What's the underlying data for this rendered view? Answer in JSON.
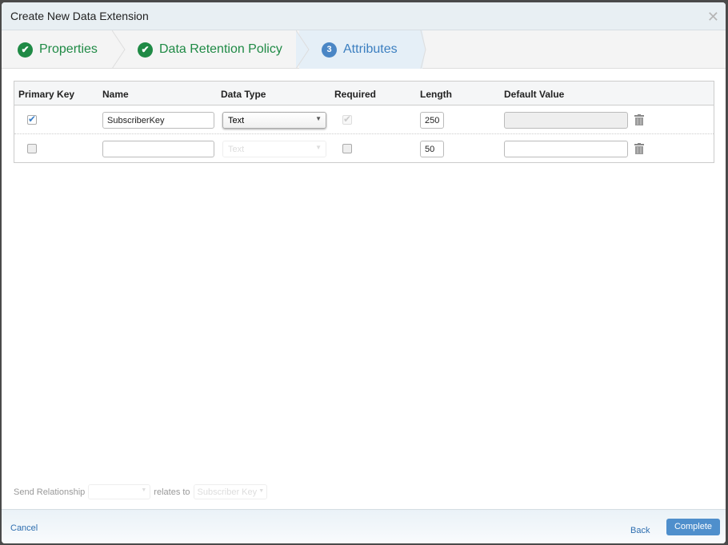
{
  "dialog": {
    "title": "Create New Data Extension",
    "close_icon": "close-icon"
  },
  "wizard": {
    "steps": [
      {
        "label": "Properties",
        "state": "done"
      },
      {
        "label": "Data Retention Policy",
        "state": "done"
      },
      {
        "label": "Attributes",
        "number": "3",
        "state": "active"
      }
    ]
  },
  "table": {
    "headers": [
      "Primary Key",
      "Name",
      "Data Type",
      "Required",
      "Length",
      "Default Value"
    ],
    "rows": [
      {
        "primary_key": true,
        "name": "SubscriberKey",
        "data_type": "Text",
        "required": true,
        "length": "250",
        "default_value": "",
        "default_disabled": true
      },
      {
        "primary_key": false,
        "name": "",
        "data_type": "Text",
        "required": false,
        "length": "50",
        "default_value": "",
        "data_type_disabled": true
      }
    ]
  },
  "relationship": {
    "label": "Send Relationship",
    "value": "",
    "relates_to": "relates to",
    "target": "Subscriber Key"
  },
  "footer": {
    "cancel": "Cancel",
    "back": "Back",
    "complete": "Complete"
  },
  "colors": {
    "done": "#1f8a45",
    "active": "#3c7fc0",
    "button": "#4f8fcc"
  }
}
